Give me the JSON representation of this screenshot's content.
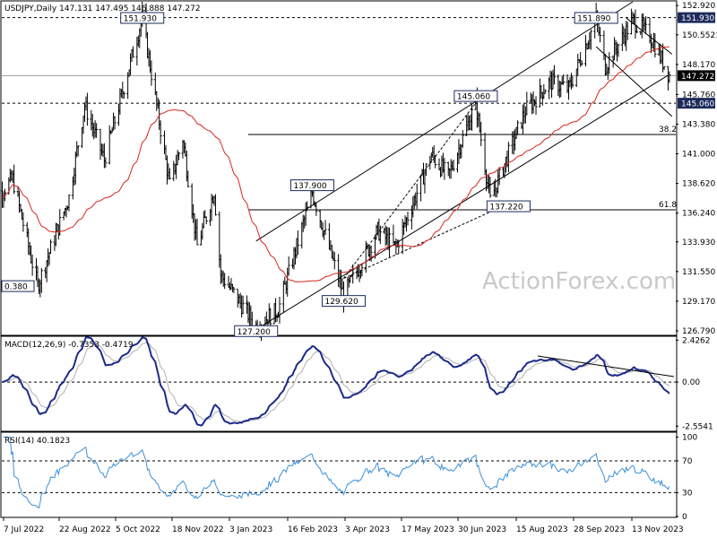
{
  "chart_data": {
    "type": "candlestick",
    "main": {
      "title": "USDJPY,Daily",
      "ohlc_label": "147.131 147.495 146.888 147.272",
      "ylim": [
        126.5,
        153.2
      ],
      "y_ticks": [
        152.9,
        150.551,
        148.17,
        145.76,
        143.38,
        141.0,
        138.62,
        136.24,
        133.93,
        131.55,
        129.17,
        126.79
      ],
      "y_tick_labels": [
        "152.920",
        "150.5521",
        "148.170",
        "145.760",
        "143.380",
        "141.000",
        "138.620",
        "136.240",
        "133.930",
        "131.550",
        "129.170",
        "126.790"
      ],
      "price_tags": [
        {
          "value": 151.93,
          "label": "151.930",
          "bg": "#1c2b5a",
          "fg": "#ffffff"
        },
        {
          "value": 147.272,
          "label": "147.272",
          "bg": "#000000",
          "fg": "#ffffff"
        },
        {
          "value": 145.06,
          "label": "145.060",
          "bg": "#1c2b5a",
          "fg": "#ffffff"
        }
      ],
      "horizontal_lines": [
        {
          "value": 151.93,
          "style": "dashed"
        },
        {
          "value": 147.272,
          "style": "solid-grey"
        },
        {
          "value": 145.06,
          "style": "dashed"
        }
      ],
      "fib_lines": [
        {
          "value": 142.55,
          "label": "38.2"
        },
        {
          "value": 136.5,
          "label": "61.8"
        }
      ],
      "annotations": [
        {
          "label": "151.930",
          "x": "2022-10-21",
          "y": 151.93
        },
        {
          "label": "151.890",
          "x": "2023-10-03",
          "y": 151.89
        },
        {
          "label": "145.060",
          "x": "2023-07-03",
          "y": 145.06
        },
        {
          "label": "137.900",
          "x": "2023-02-28",
          "y": 137.9
        },
        {
          "label": "137.220",
          "x": "2023-07-28",
          "y": 137.22
        },
        {
          "label": "129.620",
          "x": "2023-03-24",
          "y": 129.62
        },
        {
          "label": "127.200",
          "x": "2023-01-16",
          "y": 127.2
        },
        {
          "label": "0.380",
          "x": "2022-07-01",
          "y": 130.38
        }
      ],
      "watermark": "ActionForex.com",
      "series": [
        {
          "name": "price",
          "color": "#000000"
        },
        {
          "name": "ma",
          "color": "#d9251c"
        }
      ],
      "channel_color": "#000000"
    },
    "macd": {
      "label": "MACD(12,26,9) -0.7353 -0.4719",
      "ylim": [
        -2.8,
        2.6
      ],
      "y_ticks": [
        2.4262,
        0.0,
        -2.5541
      ],
      "y_tick_labels": [
        "2.4262",
        "0.00",
        "-2.5541"
      ],
      "macd_color": "#1c2b8a",
      "signal_color": "#b0b0b0"
    },
    "rsi": {
      "label": "RSI(14) 40.1823",
      "ylim": [
        0,
        105
      ],
      "y_ticks": [
        100,
        70,
        30,
        0
      ],
      "y_tick_labels": [
        "100",
        "70",
        "30",
        "0"
      ],
      "color": "#3c8fd8"
    },
    "x_tick_labels": [
      "7 Jul 2022",
      "22 Aug 2022",
      "5 Oct 2022",
      "18 Nov 2022",
      "3 Jan 2023",
      "16 Feb 2023",
      "3 Apr 2023",
      "17 May 2023",
      "30 Jun 2023",
      "15 Aug 2023",
      "28 Sep 2023",
      "13 Nov 2023"
    ]
  }
}
